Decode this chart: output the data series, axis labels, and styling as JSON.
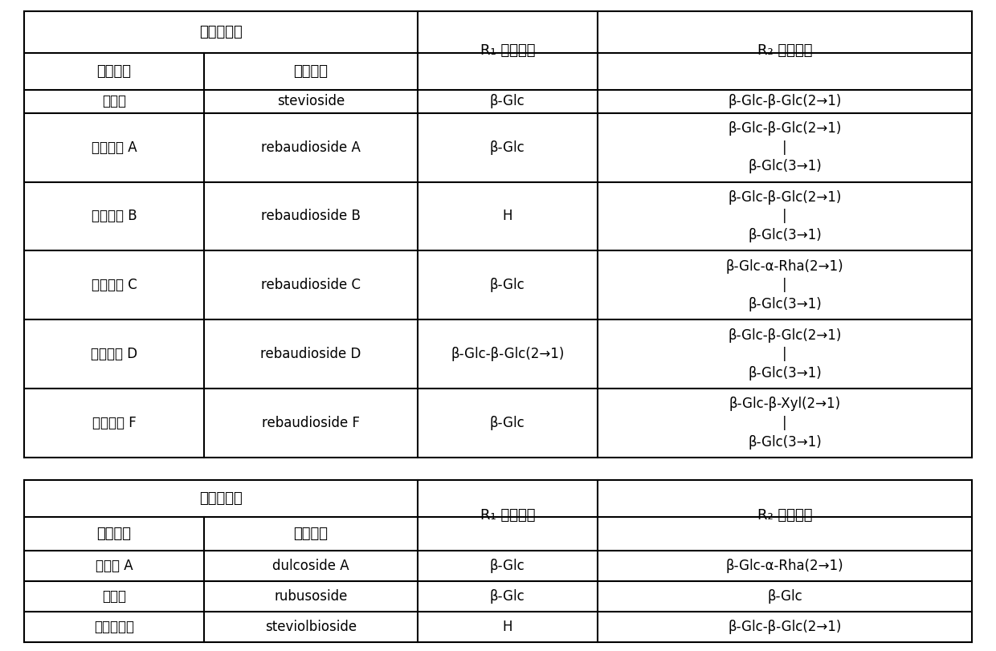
{
  "table1": {
    "rows": [
      [
        "甘菊苷",
        "stevioside",
        "β-Glc",
        "β-Glc-β-Glc(2→1)"
      ],
      [
        "瑞鬲迪苷 A",
        "rebaudioside A",
        "β-Glc",
        "β-Glc-β-Glc(2→1)\n|\nβ-Glc(3→1)"
      ],
      [
        "瑞鬲迪苷 B",
        "rebaudioside B",
        "H",
        "β-Glc-β-Glc(2→1)\n|\nβ-Glc(3→1)"
      ],
      [
        "瑞鬲迪苷 C",
        "rebaudioside C",
        "β-Glc",
        "β-Glc-α-Rha(2→1)\n|\nβ-Glc(3→1)"
      ],
      [
        "瑞鬲迪苷 D",
        "rebaudioside D",
        "β-Glc-β-Glc(2→1)",
        "β-Glc-β-Glc(2→1)\n|\nβ-Glc(3→1)"
      ],
      [
        "瑞鬲迪苷 F",
        "rebaudioside F",
        "β-Glc",
        "β-Glc-β-Xyl(2→1)\n|\nβ-Glc(3→1)"
      ]
    ]
  },
  "table2": {
    "rows": [
      [
        "杜克苷 A",
        "dulcoside A",
        "β-Glc",
        "β-Glc-α-Rha(2→1)"
      ],
      [
        "甜茶苷",
        "rubusoside",
        "β-Glc",
        "β-Glc"
      ],
      [
        "甘菊双糖苷",
        "steviolbioside",
        "H",
        "β-Glc-β-Glc(2→1)"
      ]
    ]
  },
  "header1_zh": "化合物名称",
  "header2_zh": "中文名称",
  "header2_en": "英文名称",
  "header_r1": "R₁ 位取代基",
  "header_r2": "R₂ 位取代基",
  "bg_color": "#ffffff",
  "line_color": "#000000",
  "text_color": "#000000"
}
